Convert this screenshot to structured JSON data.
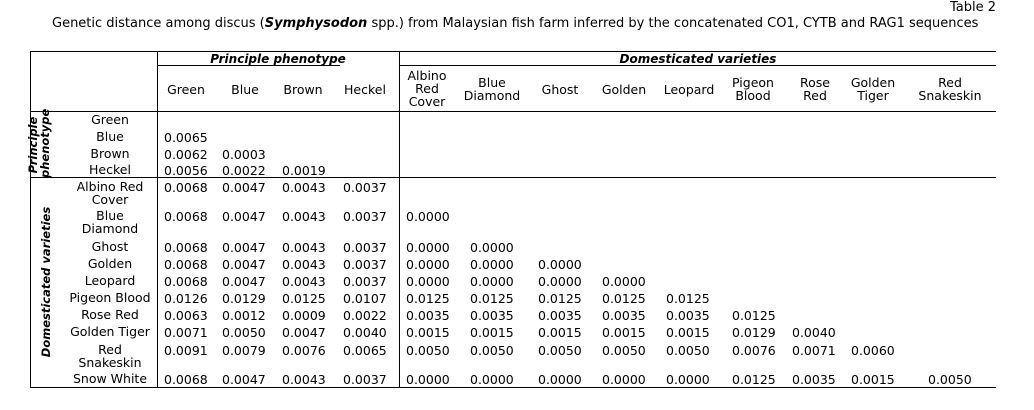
{
  "table_label": "Table 2",
  "caption": {
    "before": "Genetic distance among discus (",
    "species": "Symphysodon",
    "after": " spp.) from Malaysian fish farm inferred by the concatenated CO1, CYTB and RAG1 sequences"
  },
  "groups": {
    "principle": "Principle phenotype",
    "domesticated": "Domesticated varieties",
    "principle_side": "Principle phenotype",
    "domesticated_side": "Domesticated varieties"
  },
  "columns": [
    "Green",
    "Blue",
    "Brown",
    "Heckel",
    "Albino Red Cover",
    "Blue Diamond",
    "Ghost",
    "Golden",
    "Leopard",
    "Pigeon Blood",
    "Rose Red",
    "Golden Tiger",
    "Red Snakeskin"
  ],
  "rows": [
    {
      "label": "Green",
      "values": []
    },
    {
      "label": "Blue",
      "values": [
        "0.0065"
      ]
    },
    {
      "label": "Brown",
      "values": [
        "0.0062",
        "0.0003"
      ]
    },
    {
      "label": "Heckel",
      "values": [
        "0.0056",
        "0.0022",
        "0.0019"
      ]
    },
    {
      "label": "Albino Red Cover",
      "values": [
        "0.0068",
        "0.0047",
        "0.0043",
        "0.0037"
      ]
    },
    {
      "label": "Blue Diamond",
      "values": [
        "0.0068",
        "0.0047",
        "0.0043",
        "0.0037",
        "0.0000"
      ]
    },
    {
      "label": "Ghost",
      "values": [
        "0.0068",
        "0.0047",
        "0.0043",
        "0.0037",
        "0.0000",
        "0.0000"
      ]
    },
    {
      "label": "Golden",
      "values": [
        "0.0068",
        "0.0047",
        "0.0043",
        "0.0037",
        "0.0000",
        "0.0000",
        "0.0000"
      ]
    },
    {
      "label": "Leopard",
      "values": [
        "0.0068",
        "0.0047",
        "0.0043",
        "0.0037",
        "0.0000",
        "0.0000",
        "0.0000",
        "0.0000"
      ]
    },
    {
      "label": "Pigeon Blood",
      "values": [
        "0.0126",
        "0.0129",
        "0.0125",
        "0.0107",
        "0.0125",
        "0.0125",
        "0.0125",
        "0.0125",
        "0.0125"
      ]
    },
    {
      "label": "Rose Red",
      "values": [
        "0.0063",
        "0.0012",
        "0.0009",
        "0.0022",
        "0.0035",
        "0.0035",
        "0.0035",
        "0.0035",
        "0.0035",
        "0.0125"
      ]
    },
    {
      "label": "Golden Tiger",
      "values": [
        "0.0071",
        "0.0050",
        "0.0047",
        "0.0040",
        "0.0015",
        "0.0015",
        "0.0015",
        "0.0015",
        "0.0015",
        "0.0129",
        "0.0040"
      ]
    },
    {
      "label": "Red Snakeskin",
      "values": [
        "0.0091",
        "0.0079",
        "0.0076",
        "0.0065",
        "0.0050",
        "0.0050",
        "0.0050",
        "0.0050",
        "0.0050",
        "0.0076",
        "0.0071",
        "0.0060"
      ]
    },
    {
      "label": "Snow White",
      "values": [
        "0.0068",
        "0.0047",
        "0.0043",
        "0.0037",
        "0.0000",
        "0.0000",
        "0.0000",
        "0.0000",
        "0.0000",
        "0.0125",
        "0.0035",
        "0.0015",
        "0.0050"
      ]
    }
  ]
}
